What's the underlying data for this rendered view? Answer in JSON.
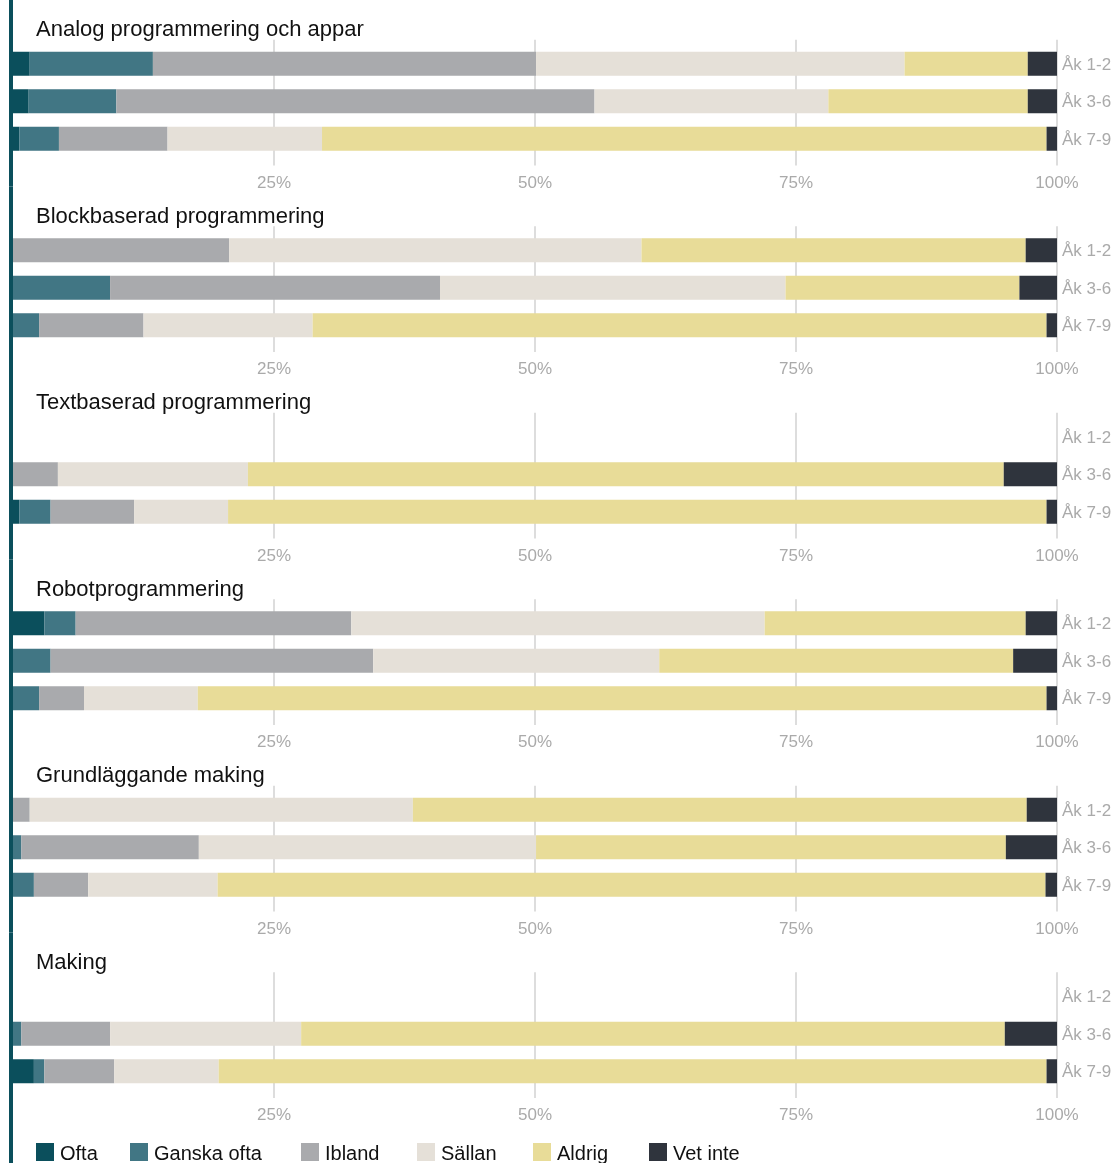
{
  "chart_data": [
    {
      "type": "bar",
      "title": "Analog programmering och appar",
      "orientation": "horizontal",
      "stacked": true,
      "categories": [
        "Åk 1-2",
        "Åk 3-6",
        "Åk 7-9"
      ],
      "xlim": [
        0,
        100
      ],
      "xticks": [
        {
          "value": 25,
          "label": "25%"
        },
        {
          "value": 50,
          "label": "50%"
        },
        {
          "value": 75,
          "label": "75%"
        },
        {
          "value": 100,
          "label": "100%"
        }
      ],
      "grid": "x",
      "legend": false,
      "series": [
        {
          "color": "#0b4f5c",
          "values": [
            1.6,
            1.5,
            0.6
          ]
        },
        {
          "color": "#417684",
          "values": [
            11.8,
            8.4,
            3.8
          ]
        },
        {
          "color": "#a9aaad",
          "values": [
            36.7,
            45.8,
            10.4
          ]
        },
        {
          "color": "#e5e0d8",
          "values": [
            35.3,
            22.4,
            14.8
          ]
        },
        {
          "color": "#e8dc98",
          "values": [
            11.8,
            19.1,
            69.4
          ]
        },
        {
          "color": "#2f343d",
          "values": [
            2.8,
            2.8,
            1.0
          ]
        }
      ]
    },
    {
      "type": "bar",
      "title": "Blockbaserad programmering",
      "orientation": "horizontal",
      "stacked": true,
      "categories": [
        "Åk 1-2",
        "Åk 3-6",
        "Åk 7-9"
      ],
      "xlim": [
        0,
        100
      ],
      "xticks": [
        {
          "value": 25,
          "label": "25%"
        },
        {
          "value": 50,
          "label": "50%"
        },
        {
          "value": 75,
          "label": "75%"
        },
        {
          "value": 100,
          "label": "100%"
        }
      ],
      "grid": "x",
      "legend": false,
      "series": [
        {
          "color": "#0b4f5c",
          "values": [
            0,
            0,
            0
          ]
        },
        {
          "color": "#417684",
          "values": [
            0,
            9.3,
            2.5
          ]
        },
        {
          "color": "#a9aaad",
          "values": [
            20.7,
            31.6,
            10.0
          ]
        },
        {
          "color": "#e5e0d8",
          "values": [
            39.5,
            33.1,
            16.2
          ]
        },
        {
          "color": "#e8dc98",
          "values": [
            36.8,
            22.4,
            70.3
          ]
        },
        {
          "color": "#2f343d",
          "values": [
            3.0,
            3.6,
            1.0
          ]
        }
      ]
    },
    {
      "type": "bar",
      "title": "Textbaserad programmering",
      "orientation": "horizontal",
      "stacked": true,
      "categories": [
        "Åk 1-2",
        "Åk 3-6",
        "Åk 7-9"
      ],
      "xlim": [
        0,
        100
      ],
      "xticks": [
        {
          "value": 25,
          "label": "25%"
        },
        {
          "value": 50,
          "label": "50%"
        },
        {
          "value": 75,
          "label": "75%"
        },
        {
          "value": 100,
          "label": "100%"
        }
      ],
      "grid": "x",
      "legend": false,
      "series": [
        {
          "color": "#0b4f5c",
          "values": [
            null,
            0,
            0.6
          ]
        },
        {
          "color": "#417684",
          "values": [
            null,
            0,
            3.0
          ]
        },
        {
          "color": "#a9aaad",
          "values": [
            null,
            4.3,
            8.0
          ]
        },
        {
          "color": "#e5e0d8",
          "values": [
            null,
            18.2,
            9.0
          ]
        },
        {
          "color": "#e8dc98",
          "values": [
            null,
            72.4,
            78.4
          ]
        },
        {
          "color": "#2f343d",
          "values": [
            null,
            5.1,
            1.0
          ]
        }
      ]
    },
    {
      "type": "bar",
      "title": "Robotprogrammering",
      "orientation": "horizontal",
      "stacked": true,
      "categories": [
        "Åk 1-2",
        "Åk 3-6",
        "Åk 7-9"
      ],
      "xlim": [
        0,
        100
      ],
      "xticks": [
        {
          "value": 25,
          "label": "25%"
        },
        {
          "value": 50,
          "label": "50%"
        },
        {
          "value": 75,
          "label": "75%"
        },
        {
          "value": 100,
          "label": "100%"
        }
      ],
      "grid": "x",
      "legend": false,
      "series": [
        {
          "color": "#0b4f5c",
          "values": [
            3.0,
            0,
            0
          ]
        },
        {
          "color": "#417684",
          "values": [
            3.0,
            3.6,
            2.5
          ]
        },
        {
          "color": "#a9aaad",
          "values": [
            26.4,
            30.9,
            4.3
          ]
        },
        {
          "color": "#e5e0d8",
          "values": [
            39.6,
            27.4,
            10.9
          ]
        },
        {
          "color": "#e8dc98",
          "values": [
            25.0,
            33.9,
            81.3
          ]
        },
        {
          "color": "#2f343d",
          "values": [
            3.0,
            4.2,
            1.0
          ]
        }
      ]
    },
    {
      "type": "bar",
      "title": "Grundläggande making",
      "orientation": "horizontal",
      "stacked": true,
      "categories": [
        "Åk 1-2",
        "Åk 3-6",
        "Åk 7-9"
      ],
      "xlim": [
        0,
        100
      ],
      "xticks": [
        {
          "value": 25,
          "label": "25%"
        },
        {
          "value": 50,
          "label": "50%"
        },
        {
          "value": 75,
          "label": "75%"
        },
        {
          "value": 100,
          "label": "100%"
        }
      ],
      "grid": "x",
      "legend": false,
      "series": [
        {
          "color": "#0b4f5c",
          "values": [
            0,
            0,
            0
          ]
        },
        {
          "color": "#417684",
          "values": [
            0,
            0.8,
            2.0
          ]
        },
        {
          "color": "#a9aaad",
          "values": [
            1.6,
            17.0,
            5.2
          ]
        },
        {
          "color": "#e5e0d8",
          "values": [
            36.7,
            32.3,
            12.4
          ]
        },
        {
          "color": "#e8dc98",
          "values": [
            58.8,
            45.0,
            79.3
          ]
        },
        {
          "color": "#2f343d",
          "values": [
            2.9,
            4.9,
            1.1
          ]
        }
      ]
    },
    {
      "type": "bar",
      "title": "Making",
      "orientation": "horizontal",
      "stacked": true,
      "categories": [
        "Åk 1-2",
        "Åk 3-6",
        "Åk 7-9"
      ],
      "xlim": [
        0,
        100
      ],
      "xticks": [
        {
          "value": 25,
          "label": "25%"
        },
        {
          "value": 50,
          "label": "50%"
        },
        {
          "value": 75,
          "label": "75%"
        },
        {
          "value": 100,
          "label": "100%"
        }
      ],
      "grid": "x",
      "legend": "bottom",
      "series": [
        {
          "name": "Ofta",
          "color": "#0b4f5c",
          "values": [
            null,
            0,
            2.0
          ]
        },
        {
          "name": "Ganska ofta",
          "color": "#417684",
          "values": [
            null,
            0.8,
            1.0
          ]
        },
        {
          "name": "Ibland",
          "color": "#a9aaad",
          "values": [
            null,
            8.5,
            6.7
          ]
        },
        {
          "name": "Sällan",
          "color": "#e5e0d8",
          "values": [
            null,
            18.3,
            10.0
          ]
        },
        {
          "name": "Aldrig",
          "color": "#e8dc98",
          "values": [
            null,
            67.4,
            79.3
          ]
        },
        {
          "name": "Vet inte",
          "color": "#2f343d",
          "values": [
            null,
            5.0,
            1.0
          ]
        }
      ]
    }
  ]
}
